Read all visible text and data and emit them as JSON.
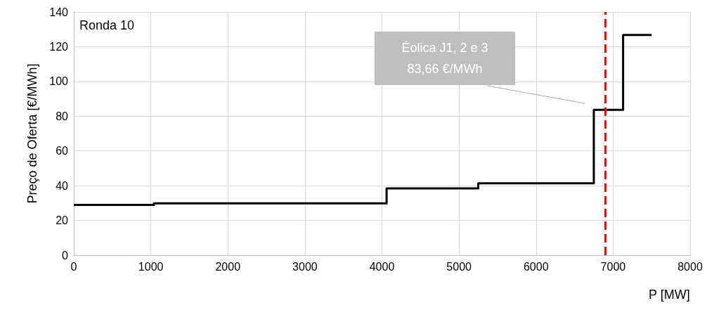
{
  "chart_data": {
    "type": "step",
    "title": "Ronda 10",
    "xlabel": "P [MW]",
    "ylabel": "Preço de Oferta [€/MWh]",
    "x": [
      0,
      1040,
      4060,
      5250,
      6750,
      7130,
      7500
    ],
    "series": [
      {
        "color": "#000000",
        "values": [
          28.9,
          29.8,
          38.4,
          41.4,
          83.66,
          126.7,
          126.7
        ]
      }
    ],
    "xlim": [
      0,
      8000
    ],
    "xticks": [
      0,
      1000,
      2000,
      3000,
      4000,
      5000,
      6000,
      7000,
      8000
    ],
    "ylim": [
      0,
      140
    ],
    "yticks": [
      0,
      20,
      40,
      60,
      80,
      100,
      120,
      140
    ],
    "grid": true,
    "marker": "none",
    "line_style": "solid",
    "ref_lines": [
      {
        "axis": "x",
        "value": 6900,
        "color": "#ff0000",
        "line_style": "dashed"
      }
    ],
    "annotations": [
      "Éolica J1, 2 e 3\n83,66 €/MWh"
    ]
  }
}
